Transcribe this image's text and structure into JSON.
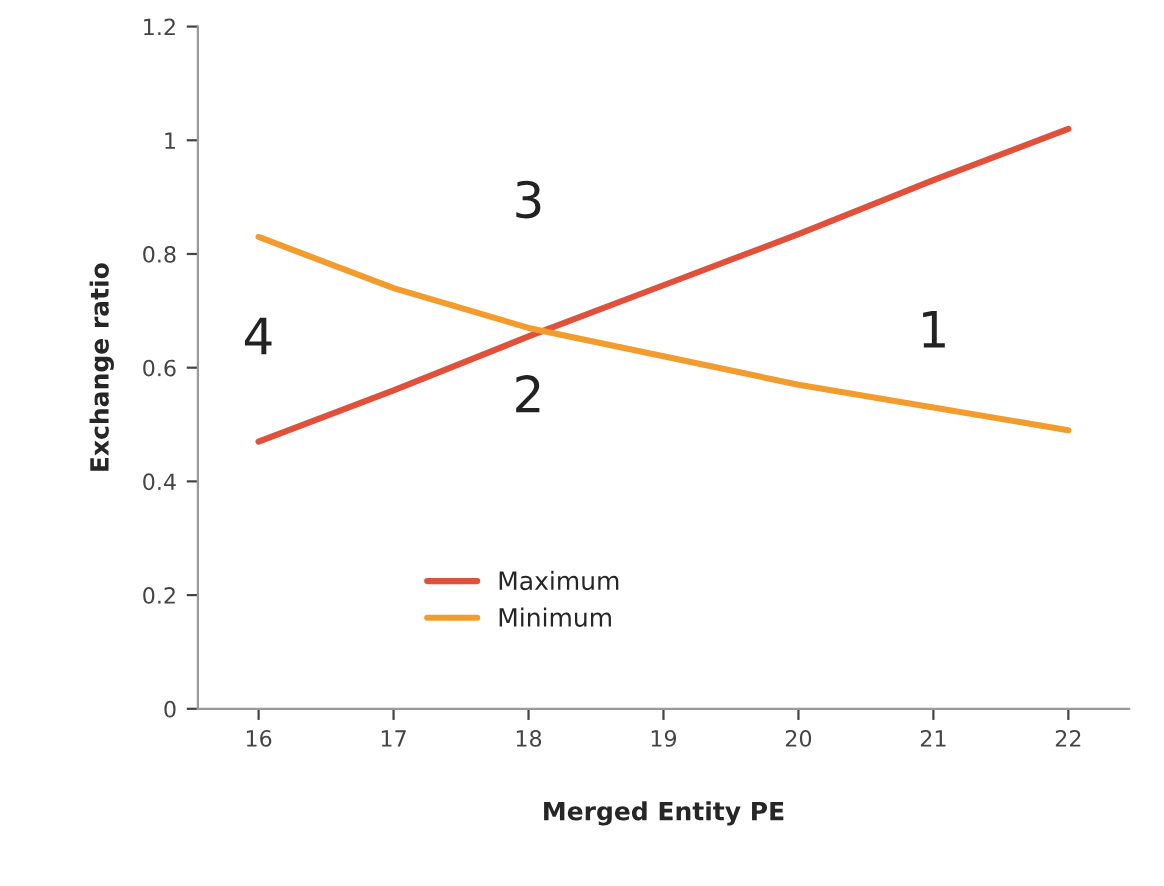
{
  "chart_data": {
    "type": "line",
    "xlabel": "Merged Entity PE",
    "ylabel": "Exchange ratio",
    "categories": [
      "16",
      "17",
      "18",
      "19",
      "20",
      "21",
      "22"
    ],
    "series": [
      {
        "name": "Maximum",
        "color": "#e0503a",
        "values": [
          0.47,
          0.56,
          0.655,
          0.745,
          0.835,
          0.93,
          1.02
        ]
      },
      {
        "name": "Minimum",
        "color": "#f39c2e",
        "values": [
          0.83,
          0.74,
          0.67,
          0.62,
          0.57,
          0.53,
          0.49
        ]
      }
    ],
    "ylim": [
      0,
      1.2
    ],
    "yticks": [
      0,
      0.2,
      0.4,
      0.6,
      0.8,
      1,
      1.2
    ],
    "grid": false,
    "legend": "bottom",
    "marker": "none",
    "line_style": "solid",
    "annotations": [
      "1",
      "2",
      "3",
      "4"
    ]
  }
}
